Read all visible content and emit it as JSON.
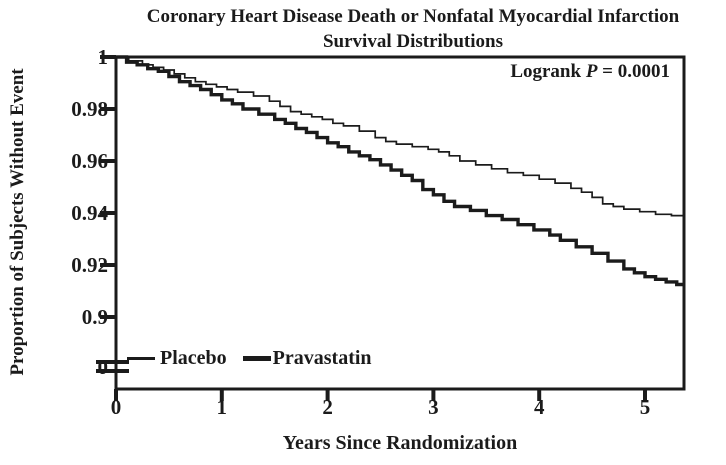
{
  "title": {
    "line1": "Coronary Heart Disease Death or Nonfatal Myocardial Infarction",
    "line2": "Survival Distributions"
  },
  "annotation": {
    "prefix": "Logrank ",
    "p": "P",
    "rest": " = 0.0001"
  },
  "axes": {
    "x": {
      "label": "Years Since Randomization",
      "tick_labels": [
        "0",
        "1",
        "2",
        "3",
        "4",
        "5"
      ],
      "tick_values": [
        0,
        1,
        2,
        3,
        4,
        5
      ],
      "max": 5.4
    },
    "y": {
      "label": "Proportion of Subjects Without Event",
      "tick_labels": [
        "1",
        "0.98",
        "0.96",
        "0.94",
        "0.92",
        "0.9",
        "0"
      ],
      "tick_values": [
        1,
        0.98,
        0.96,
        0.94,
        0.92,
        0.9,
        0
      ],
      "axis_break": true
    }
  },
  "legend": {
    "items": [
      {
        "label": "Placebo",
        "line": "thin"
      },
      {
        "label": "Pravastatin",
        "line": "thick"
      }
    ]
  },
  "colors": {
    "line": "#1b1b1b",
    "text": "#1b1b1b",
    "background": "#ffffff"
  },
  "chart_data": {
    "type": "line",
    "subtype": "kaplan-meier-step",
    "title": "Coronary Heart Disease Death or Nonfatal Myocardial Infarction Survival Distributions",
    "xlabel": "Years Since Randomization",
    "ylabel": "Proportion of Subjects Without Event",
    "xlim": [
      0,
      5.4
    ],
    "ylim": [
      0.9,
      1.0
    ],
    "y_axis_break_to_zero": true,
    "annotation": "Logrank P = 0.0001",
    "legend_position": "inside bottom-left",
    "grid": false,
    "series": [
      {
        "name": "Placebo",
        "line": "thin",
        "x": [
          0,
          0.12,
          0.25,
          0.35,
          0.45,
          0.55,
          0.65,
          0.75,
          0.85,
          0.95,
          1.05,
          1.15,
          1.3,
          1.45,
          1.55,
          1.65,
          1.75,
          1.85,
          1.95,
          2.05,
          2.15,
          2.3,
          2.45,
          2.55,
          2.65,
          2.8,
          2.95,
          3.05,
          3.15,
          3.25,
          3.4,
          3.55,
          3.7,
          3.85,
          4.0,
          4.15,
          4.3,
          4.4,
          4.5,
          4.6,
          4.7,
          4.8,
          4.95,
          5.1,
          5.25
        ],
        "y": [
          1,
          0.9985,
          0.997,
          0.996,
          0.995,
          0.9935,
          0.992,
          0.9905,
          0.9895,
          0.9885,
          0.9875,
          0.9865,
          0.985,
          0.983,
          0.981,
          0.979,
          0.978,
          0.977,
          0.976,
          0.9745,
          0.9735,
          0.9715,
          0.969,
          0.9675,
          0.9665,
          0.9655,
          0.9645,
          0.9635,
          0.962,
          0.96,
          0.9585,
          0.957,
          0.9555,
          0.9545,
          0.953,
          0.9515,
          0.9495,
          0.948,
          0.946,
          0.9435,
          0.9425,
          0.9415,
          0.9405,
          0.9395,
          0.939
        ]
      },
      {
        "name": "Pravastatin",
        "line": "thick",
        "x": [
          0,
          0.1,
          0.2,
          0.3,
          0.4,
          0.5,
          0.6,
          0.7,
          0.8,
          0.9,
          1.0,
          1.1,
          1.2,
          1.35,
          1.5,
          1.6,
          1.7,
          1.8,
          1.9,
          2.0,
          2.1,
          2.2,
          2.3,
          2.4,
          2.5,
          2.6,
          2.7,
          2.8,
          2.9,
          3.0,
          3.1,
          3.2,
          3.35,
          3.5,
          3.65,
          3.8,
          3.95,
          4.1,
          4.2,
          4.35,
          4.5,
          4.65,
          4.8,
          4.9,
          5.0,
          5.1,
          5.2,
          5.3
        ],
        "y": [
          1,
          0.998,
          0.997,
          0.9955,
          0.9945,
          0.9925,
          0.9905,
          0.989,
          0.9875,
          0.9855,
          0.9835,
          0.982,
          0.98,
          0.978,
          0.976,
          0.9745,
          0.9725,
          0.971,
          0.969,
          0.967,
          0.9655,
          0.9635,
          0.962,
          0.9605,
          0.9585,
          0.9565,
          0.9545,
          0.9525,
          0.949,
          0.947,
          0.9445,
          0.9425,
          0.941,
          0.939,
          0.9375,
          0.9355,
          0.9335,
          0.9315,
          0.9295,
          0.927,
          0.9245,
          0.9215,
          0.9185,
          0.917,
          0.9155,
          0.9145,
          0.9135,
          0.9125
        ]
      }
    ]
  }
}
